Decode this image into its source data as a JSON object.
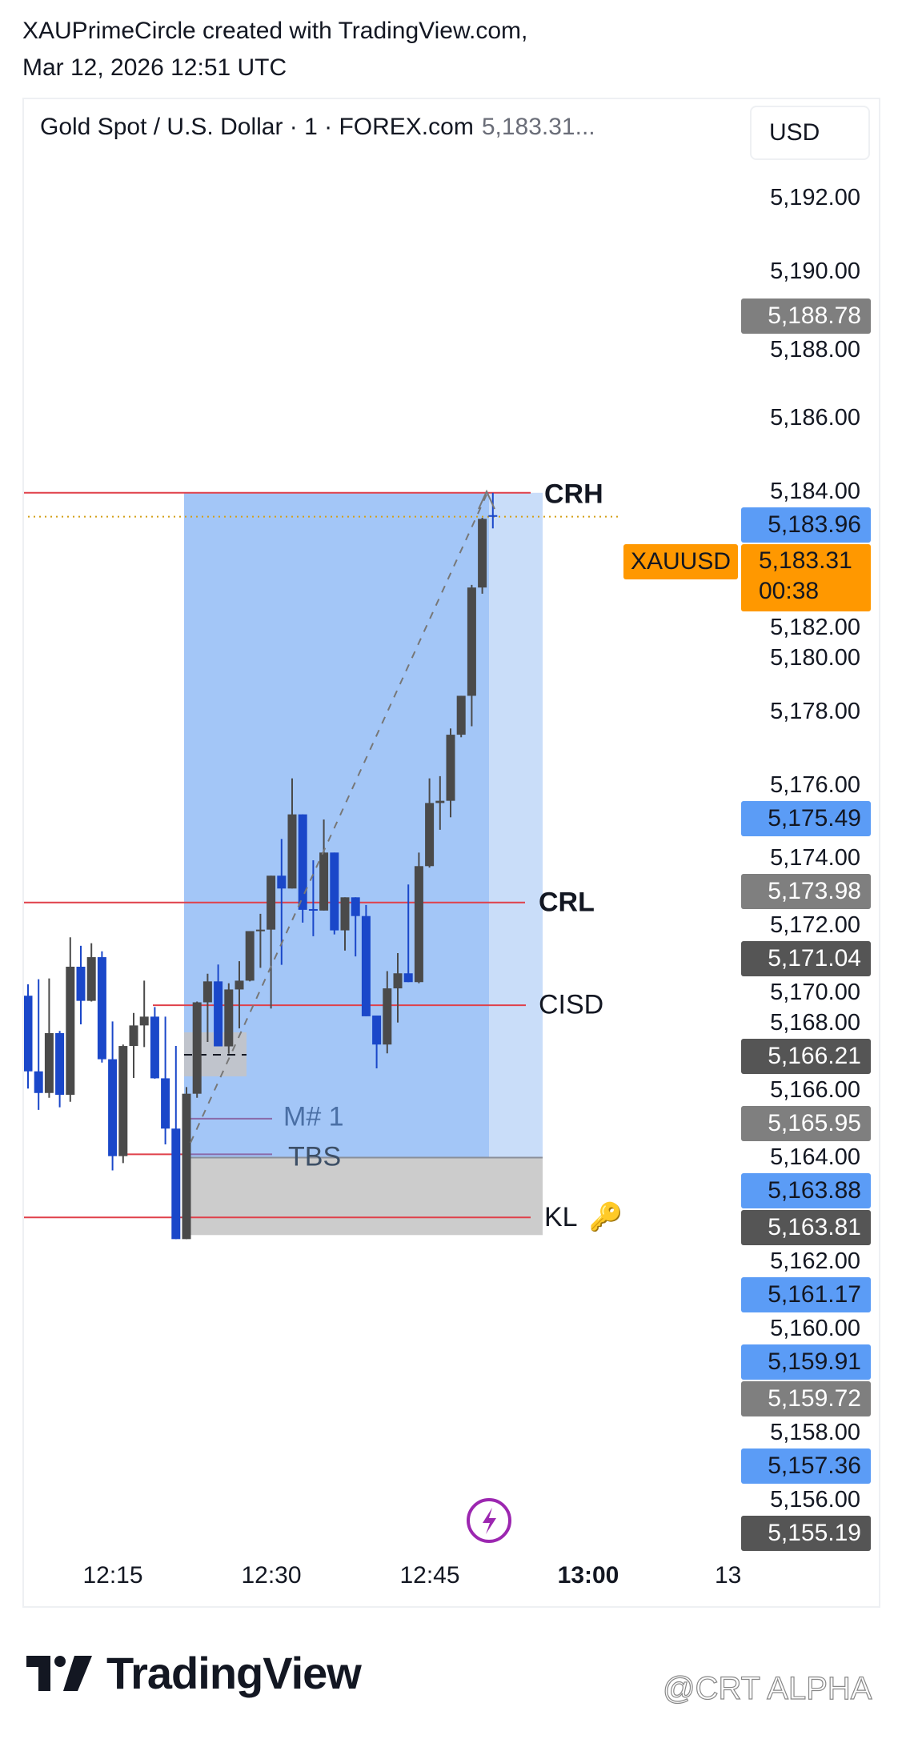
{
  "header": {
    "line1": "XAUPrimeCircle created with TradingView.com,",
    "line2": "Mar 12, 2026 12:51 UTC"
  },
  "legend": {
    "symbol_desc": "Gold Spot / U.S. Dollar · 1 · FOREX.com",
    "last_price": "5,183.31..."
  },
  "currency_button": "USD",
  "colors": {
    "up_candle": "#4a4a4a",
    "down_candle": "#1a47c9",
    "level_line": "#e0404a",
    "zone_blue": "#a3c6f7",
    "zone_blue_light": "#c9ddf9",
    "zone_gray": "#cccccc",
    "price_badge": "#ff9800",
    "alert_icon": "#9c27b0"
  },
  "price_axis": {
    "ticks": [
      "5,192.00",
      "5,190.00",
      "5,188.00",
      "5,186.00",
      "5,184.00",
      "5,182.00",
      "5,180.00",
      "5,178.00",
      "5,176.00",
      "5,174.00",
      "5,172.00",
      "5,170.00",
      "5,168.00",
      "5,166.00",
      "5,164.00",
      "5,162.00",
      "5,160.00",
      "5,158.00",
      "5,156.00"
    ],
    "badges": [
      {
        "value": 5188.78,
        "label": "5,188.78",
        "bg": "#7f7f7f",
        "fg": "#ffffff"
      },
      {
        "value": 5183.96,
        "label": "5,183.96",
        "bg": "#5b9cf6",
        "fg": "#131722"
      },
      {
        "value": 5175.49,
        "label": "5,175.49",
        "bg": "#5b9cf6",
        "fg": "#131722"
      },
      {
        "value": 5173.98,
        "label": "5,173.98",
        "bg": "#7f7f7f",
        "fg": "#ffffff"
      },
      {
        "value": 5171.04,
        "label": "5,171.04",
        "bg": "#555555",
        "fg": "#ffffff"
      },
      {
        "value": 5166.21,
        "label": "5,166.21",
        "bg": "#555555",
        "fg": "#ffffff"
      },
      {
        "value": 5165.95,
        "label": "5,165.95",
        "bg": "#7f7f7f",
        "fg": "#ffffff"
      },
      {
        "value": 5163.88,
        "label": "5,163.88",
        "bg": "#5b9cf6",
        "fg": "#131722"
      },
      {
        "value": 5163.81,
        "label": "5,163.81",
        "bg": "#555555",
        "fg": "#ffffff"
      },
      {
        "value": 5161.17,
        "label": "5,161.17",
        "bg": "#5b9cf6",
        "fg": "#131722"
      },
      {
        "value": 5159.91,
        "label": "5,159.91",
        "bg": "#5b9cf6",
        "fg": "#131722"
      },
      {
        "value": 5159.72,
        "label": "5,159.72",
        "bg": "#7f7f7f",
        "fg": "#ffffff"
      },
      {
        "value": 5157.36,
        "label": "5,157.36",
        "bg": "#5b9cf6",
        "fg": "#131722"
      },
      {
        "value": 5155.19,
        "label": "5,155.19",
        "bg": "#555555",
        "fg": "#ffffff"
      }
    ],
    "current": {
      "symbol": "XAUUSD",
      "value": 5183.31,
      "label": "5,183.31",
      "countdown": "00:38"
    }
  },
  "time_axis": {
    "labels": [
      {
        "text": "12:15",
        "bold": false
      },
      {
        "text": "12:30",
        "bold": false
      },
      {
        "text": "12:45",
        "bold": false
      },
      {
        "text": "13:00",
        "bold": true
      },
      {
        "text": "13:",
        "bold": false
      }
    ]
  },
  "drawings": {
    "levels": [
      {
        "name": "CRH",
        "price": 5183.96,
        "bold": true
      },
      {
        "name": "CRL",
        "price": 5172.8,
        "bold": true
      },
      {
        "name": "CISD",
        "price": 5170.0,
        "bold": false
      },
      {
        "name": "KL",
        "price": 5164.22,
        "bold": false,
        "icon": "🔑"
      }
    ],
    "marks": [
      {
        "name": "M# 1",
        "price": 5166.91
      },
      {
        "name": "TBS",
        "price": 5165.94
      }
    ]
  },
  "chart_data": {
    "type": "candlestick",
    "title": "Gold Spot / U.S. Dollar · 1 · FOREX.com",
    "ylim": [
      5154,
      5194
    ],
    "candles": [
      {
        "t": "12:07",
        "o": 5170.26,
        "h": 5170.57,
        "l": 5167.73,
        "c": 5168.2
      },
      {
        "t": "12:08",
        "o": 5168.2,
        "h": 5170.71,
        "l": 5167.15,
        "c": 5167.61
      },
      {
        "t": "12:09",
        "o": 5167.61,
        "h": 5170.73,
        "l": 5167.48,
        "c": 5169.24
      },
      {
        "t": "12:10",
        "o": 5169.24,
        "h": 5169.3,
        "l": 5167.22,
        "c": 5167.56
      },
      {
        "t": "12:11",
        "o": 5167.56,
        "h": 5171.85,
        "l": 5167.37,
        "c": 5171.05
      },
      {
        "t": "12:12",
        "o": 5171.05,
        "h": 5171.62,
        "l": 5169.48,
        "c": 5170.12
      },
      {
        "t": "12:13",
        "o": 5170.12,
        "h": 5171.69,
        "l": 5170.1,
        "c": 5171.31
      },
      {
        "t": "12:14",
        "o": 5171.31,
        "h": 5171.47,
        "l": 5168.44,
        "c": 5168.53
      },
      {
        "t": "12:15",
        "o": 5168.53,
        "h": 5169.56,
        "l": 5165.5,
        "c": 5165.89
      },
      {
        "t": "12:16",
        "o": 5165.89,
        "h": 5168.93,
        "l": 5165.7,
        "c": 5168.89
      },
      {
        "t": "12:17",
        "o": 5168.89,
        "h": 5169.79,
        "l": 5168.02,
        "c": 5169.45
      },
      {
        "t": "12:18",
        "o": 5169.45,
        "h": 5170.67,
        "l": 5168.86,
        "c": 5169.69
      },
      {
        "t": "12:19",
        "o": 5169.69,
        "h": 5169.95,
        "l": 5168.0,
        "c": 5168.01
      },
      {
        "t": "12:20",
        "o": 5168.01,
        "h": 5169.69,
        "l": 5166.21,
        "c": 5166.64
      },
      {
        "t": "12:21",
        "o": 5166.64,
        "h": 5168.89,
        "l": 5163.63,
        "c": 5163.63
      },
      {
        "t": "12:22",
        "o": 5163.63,
        "h": 5167.77,
        "l": 5163.63,
        "c": 5167.59
      },
      {
        "t": "12:23",
        "o": 5167.59,
        "h": 5170.1,
        "l": 5167.48,
        "c": 5170.08
      },
      {
        "t": "12:24",
        "o": 5170.08,
        "h": 5170.86,
        "l": 5169.0,
        "c": 5170.65
      },
      {
        "t": "12:25",
        "o": 5170.65,
        "h": 5171.11,
        "l": 5168.88,
        "c": 5168.88
      },
      {
        "t": "12:26",
        "o": 5168.88,
        "h": 5170.6,
        "l": 5168.68,
        "c": 5170.43
      },
      {
        "t": "12:27",
        "o": 5170.43,
        "h": 5171.2,
        "l": 5169.37,
        "c": 5170.67
      },
      {
        "t": "12:28",
        "o": 5170.67,
        "h": 5172.02,
        "l": 5170.65,
        "c": 5172.02
      },
      {
        "t": "12:29",
        "o": 5172.02,
        "h": 5172.49,
        "l": 5171.02,
        "c": 5172.06
      },
      {
        "t": "12:30",
        "o": 5172.06,
        "h": 5173.53,
        "l": 5169.91,
        "c": 5173.53
      },
      {
        "t": "12:31",
        "o": 5173.53,
        "h": 5174.53,
        "l": 5171.1,
        "c": 5173.18
      },
      {
        "t": "12:32",
        "o": 5173.18,
        "h": 5176.18,
        "l": 5173.18,
        "c": 5175.2
      },
      {
        "t": "12:33",
        "o": 5175.2,
        "h": 5175.2,
        "l": 5172.25,
        "c": 5172.6
      },
      {
        "t": "12:34",
        "o": 5172.62,
        "h": 5173.95,
        "l": 5171.88,
        "c": 5172.6
      },
      {
        "t": "12:35",
        "o": 5172.58,
        "h": 5175.06,
        "l": 5172.58,
        "c": 5174.16
      },
      {
        "t": "12:36",
        "o": 5174.16,
        "h": 5174.16,
        "l": 5171.93,
        "c": 5172.04
      },
      {
        "t": "12:37",
        "o": 5172.04,
        "h": 5172.94,
        "l": 5171.49,
        "c": 5172.94
      },
      {
        "t": "12:38",
        "o": 5172.94,
        "h": 5172.94,
        "l": 5171.33,
        "c": 5172.43
      },
      {
        "t": "12:39",
        "o": 5172.43,
        "h": 5172.73,
        "l": 5169.7,
        "c": 5169.7
      },
      {
        "t": "12:40",
        "o": 5169.72,
        "h": 5169.72,
        "l": 5168.28,
        "c": 5168.93
      },
      {
        "t": "12:41",
        "o": 5168.93,
        "h": 5170.93,
        "l": 5168.69,
        "c": 5170.46
      },
      {
        "t": "12:42",
        "o": 5170.46,
        "h": 5171.42,
        "l": 5169.53,
        "c": 5170.87
      },
      {
        "t": "12:43",
        "o": 5170.87,
        "h": 5173.29,
        "l": 5170.63,
        "c": 5170.63
      },
      {
        "t": "12:44",
        "o": 5170.63,
        "h": 5174.16,
        "l": 5170.6,
        "c": 5173.79
      },
      {
        "t": "12:45",
        "o": 5173.79,
        "h": 5176.18,
        "l": 5173.75,
        "c": 5175.51
      },
      {
        "t": "12:46",
        "o": 5175.51,
        "h": 5176.24,
        "l": 5174.78,
        "c": 5175.57
      },
      {
        "t": "12:47",
        "o": 5175.57,
        "h": 5177.54,
        "l": 5175.12,
        "c": 5177.37
      },
      {
        "t": "12:48",
        "o": 5177.37,
        "h": 5178.43,
        "l": 5177.3,
        "c": 5178.43
      },
      {
        "t": "12:49",
        "o": 5178.43,
        "h": 5181.45,
        "l": 5177.6,
        "c": 5181.38
      },
      {
        "t": "12:50",
        "o": 5181.38,
        "h": 5183.28,
        "l": 5181.21,
        "c": 5183.25
      },
      {
        "t": "12:51",
        "o": 5183.35,
        "h": 5183.96,
        "l": 5182.99,
        "c": 5183.31
      }
    ]
  },
  "footer": {
    "brand": "TradingView",
    "watermark": "@CRT ALPHA"
  }
}
